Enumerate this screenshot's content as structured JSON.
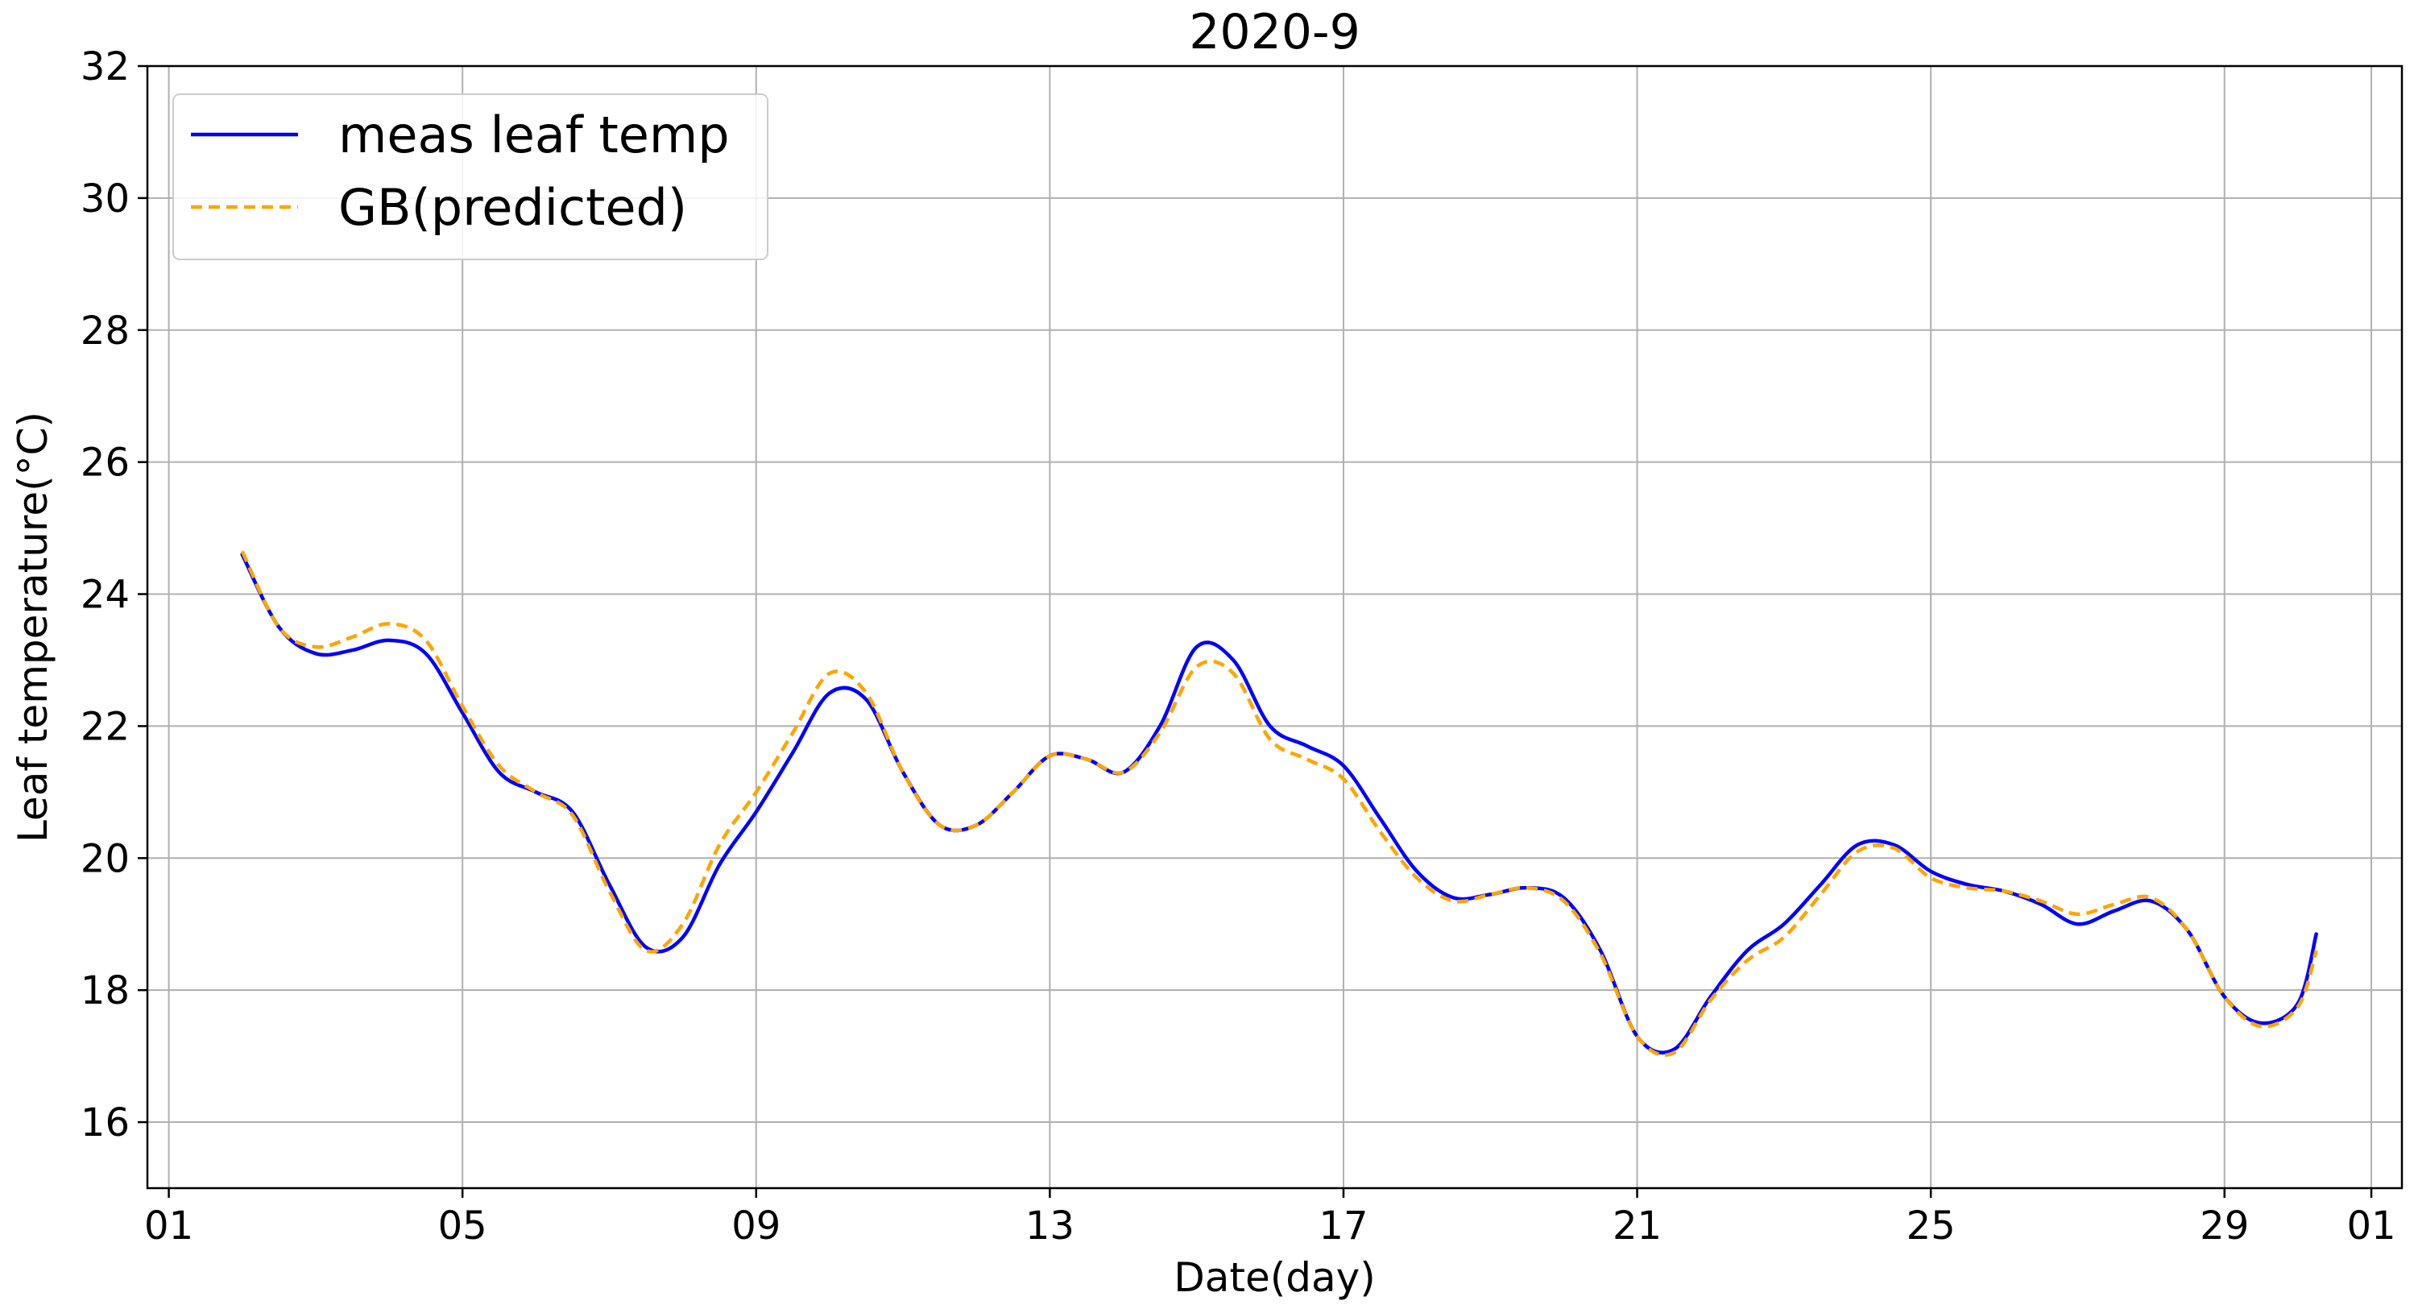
{
  "chart_data": {
    "type": "line",
    "title": "2020-9",
    "xlabel": "Date(day)",
    "ylabel": "Leaf temperature(°C)",
    "x_ticks": [
      "01",
      "05",
      "09",
      "13",
      "17",
      "21",
      "25",
      "29",
      "01"
    ],
    "x_tick_dates": [
      "2020-09-01",
      "2020-09-05",
      "2020-09-09",
      "2020-09-13",
      "2020-09-17",
      "2020-09-21",
      "2020-09-25",
      "2020-09-29",
      "2020-10-01"
    ],
    "xlim": [
      "2020-08-31 17:00",
      "2020-10-01 10:00"
    ],
    "y_ticks": [
      16,
      18,
      20,
      22,
      24,
      26,
      28,
      30,
      32
    ],
    "ylim": [
      15,
      32
    ],
    "grid": true,
    "legend_position": "top-left",
    "series": [
      {
        "name": "meas leaf temp",
        "color": "#0000ff",
        "style": "solid",
        "points": [
          [
            "2020-09-02 00:00",
            24.6
          ],
          [
            "2020-09-02 12:00",
            23.5
          ],
          [
            "2020-09-03 00:00",
            23.1
          ],
          [
            "2020-09-03 12:00",
            23.15
          ],
          [
            "2020-09-04 00:00",
            23.3
          ],
          [
            "2020-09-04 12:00",
            23.1
          ],
          [
            "2020-09-05 00:00",
            22.2
          ],
          [
            "2020-09-05 12:00",
            21.3
          ],
          [
            "2020-09-06 00:00",
            21.0
          ],
          [
            "2020-09-06 12:00",
            20.7
          ],
          [
            "2020-09-07 00:00",
            19.6
          ],
          [
            "2020-09-07 12:00",
            18.65
          ],
          [
            "2020-09-08 00:00",
            18.8
          ],
          [
            "2020-09-08 12:00",
            19.9
          ],
          [
            "2020-09-09 00:00",
            20.7
          ],
          [
            "2020-09-09 12:00",
            21.6
          ],
          [
            "2020-09-10 00:00",
            22.5
          ],
          [
            "2020-09-10 12:00",
            22.4
          ],
          [
            "2020-09-11 00:00",
            21.3
          ],
          [
            "2020-09-11 12:00",
            20.5
          ],
          [
            "2020-09-12 00:00",
            20.5
          ],
          [
            "2020-09-12 12:00",
            21.0
          ],
          [
            "2020-09-13 00:00",
            21.55
          ],
          [
            "2020-09-13 12:00",
            21.5
          ],
          [
            "2020-09-14 00:00",
            21.3
          ],
          [
            "2020-09-14 12:00",
            22.0
          ],
          [
            "2020-09-15 00:00",
            23.2
          ],
          [
            "2020-09-15 12:00",
            23.0
          ],
          [
            "2020-09-16 00:00",
            22.0
          ],
          [
            "2020-09-16 12:00",
            21.7
          ],
          [
            "2020-09-17 00:00",
            21.4
          ],
          [
            "2020-09-17 12:00",
            20.6
          ],
          [
            "2020-09-18 00:00",
            19.8
          ],
          [
            "2020-09-18 12:00",
            19.4
          ],
          [
            "2020-09-19 00:00",
            19.45
          ],
          [
            "2020-09-19 12:00",
            19.55
          ],
          [
            "2020-09-20 00:00",
            19.4
          ],
          [
            "2020-09-20 12:00",
            18.6
          ],
          [
            "2020-09-21 00:00",
            17.3
          ],
          [
            "2020-09-21 12:00",
            17.1
          ],
          [
            "2020-09-22 00:00",
            17.9
          ],
          [
            "2020-09-22 12:00",
            18.6
          ],
          [
            "2020-09-23 00:00",
            19.0
          ],
          [
            "2020-09-23 12:00",
            19.6
          ],
          [
            "2020-09-24 00:00",
            20.2
          ],
          [
            "2020-09-24 12:00",
            20.2
          ],
          [
            "2020-09-25 00:00",
            19.8
          ],
          [
            "2020-09-25 12:00",
            19.6
          ],
          [
            "2020-09-26 00:00",
            19.5
          ],
          [
            "2020-09-26 12:00",
            19.3
          ],
          [
            "2020-09-27 00:00",
            19.0
          ],
          [
            "2020-09-27 12:00",
            19.2
          ],
          [
            "2020-09-28 00:00",
            19.35
          ],
          [
            "2020-09-28 12:00",
            18.9
          ],
          [
            "2020-09-29 00:00",
            17.9
          ],
          [
            "2020-09-29 12:00",
            17.5
          ],
          [
            "2020-09-30 00:00",
            17.8
          ],
          [
            "2020-09-30 06:00",
            18.85
          ]
        ]
      },
      {
        "name": "GB(predicted)",
        "color": "#ffa500",
        "style": "dashed",
        "points": [
          [
            "2020-09-02 00:00",
            24.65
          ],
          [
            "2020-09-02 12:00",
            23.5
          ],
          [
            "2020-09-03 00:00",
            23.2
          ],
          [
            "2020-09-03 12:00",
            23.35
          ],
          [
            "2020-09-04 00:00",
            23.55
          ],
          [
            "2020-09-04 12:00",
            23.3
          ],
          [
            "2020-09-05 00:00",
            22.3
          ],
          [
            "2020-09-05 12:00",
            21.4
          ],
          [
            "2020-09-06 00:00",
            21.0
          ],
          [
            "2020-09-06 12:00",
            20.65
          ],
          [
            "2020-09-07 00:00",
            19.5
          ],
          [
            "2020-09-07 12:00",
            18.6
          ],
          [
            "2020-09-08 00:00",
            19.0
          ],
          [
            "2020-09-08 12:00",
            20.2
          ],
          [
            "2020-09-09 00:00",
            21.0
          ],
          [
            "2020-09-09 12:00",
            21.9
          ],
          [
            "2020-09-10 00:00",
            22.8
          ],
          [
            "2020-09-10 12:00",
            22.5
          ],
          [
            "2020-09-11 00:00",
            21.3
          ],
          [
            "2020-09-11 12:00",
            20.5
          ],
          [
            "2020-09-12 00:00",
            20.5
          ],
          [
            "2020-09-12 12:00",
            21.0
          ],
          [
            "2020-09-13 00:00",
            21.55
          ],
          [
            "2020-09-13 12:00",
            21.5
          ],
          [
            "2020-09-14 00:00",
            21.3
          ],
          [
            "2020-09-14 12:00",
            21.9
          ],
          [
            "2020-09-15 00:00",
            22.9
          ],
          [
            "2020-09-15 12:00",
            22.8
          ],
          [
            "2020-09-16 00:00",
            21.8
          ],
          [
            "2020-09-16 12:00",
            21.5
          ],
          [
            "2020-09-17 00:00",
            21.2
          ],
          [
            "2020-09-17 12:00",
            20.4
          ],
          [
            "2020-09-18 00:00",
            19.7
          ],
          [
            "2020-09-18 12:00",
            19.35
          ],
          [
            "2020-09-19 00:00",
            19.45
          ],
          [
            "2020-09-19 12:00",
            19.55
          ],
          [
            "2020-09-20 00:00",
            19.35
          ],
          [
            "2020-09-20 12:00",
            18.55
          ],
          [
            "2020-09-21 00:00",
            17.3
          ],
          [
            "2020-09-21 12:00",
            17.05
          ],
          [
            "2020-09-22 00:00",
            17.85
          ],
          [
            "2020-09-22 12:00",
            18.45
          ],
          [
            "2020-09-23 00:00",
            18.8
          ],
          [
            "2020-09-23 12:00",
            19.45
          ],
          [
            "2020-09-24 00:00",
            20.1
          ],
          [
            "2020-09-24 12:00",
            20.15
          ],
          [
            "2020-09-25 00:00",
            19.7
          ],
          [
            "2020-09-25 12:00",
            19.55
          ],
          [
            "2020-09-26 00:00",
            19.5
          ],
          [
            "2020-09-26 12:00",
            19.35
          ],
          [
            "2020-09-27 00:00",
            19.15
          ],
          [
            "2020-09-27 12:00",
            19.3
          ],
          [
            "2020-09-28 00:00",
            19.4
          ],
          [
            "2020-09-28 12:00",
            18.9
          ],
          [
            "2020-09-29 00:00",
            17.9
          ],
          [
            "2020-09-29 12:00",
            17.45
          ],
          [
            "2020-09-30 00:00",
            17.75
          ],
          [
            "2020-09-30 06:00",
            18.6
          ]
        ]
      }
    ]
  }
}
